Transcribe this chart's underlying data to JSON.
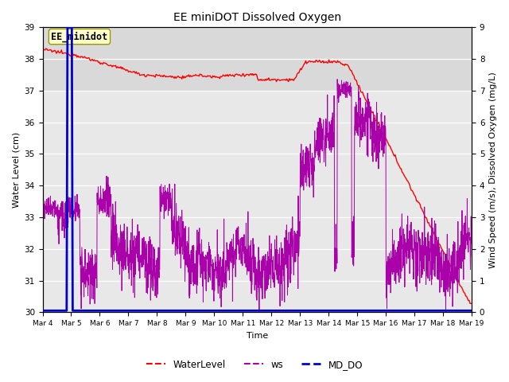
{
  "title": "EE miniDOT Dissolved Oxygen",
  "xlabel": "Time",
  "ylabel_left": "Water Level (cm)",
  "ylabel_right": "Wind Speed (m/s), Dissolved Oxygen (mg/L)",
  "ylim_left": [
    30.0,
    39.0
  ],
  "ylim_right": [
    0.0,
    9.0
  ],
  "yticks_left": [
    30.0,
    31.0,
    32.0,
    33.0,
    34.0,
    35.0,
    36.0,
    37.0,
    38.0,
    39.0
  ],
  "yticks_right": [
    0.0,
    1.0,
    2.0,
    3.0,
    4.0,
    5.0,
    6.0,
    7.0,
    8.0,
    9.0
  ],
  "xtick_labels": [
    "Mar 4",
    "Mar 5",
    "Mar 6",
    "Mar 7",
    "Mar 8",
    "Mar 9",
    "Mar 10",
    "Mar 11",
    "Mar 12",
    "Mar 13",
    "Mar 14",
    "Mar 15",
    "Mar 16",
    "Mar 17",
    "Mar 18",
    "Mar 19"
  ],
  "annotation_text": "EE_minidot",
  "legend_labels": [
    "WaterLevel",
    "ws",
    "MD_DO"
  ],
  "legend_colors": [
    "#ff0000",
    "#aa00aa",
    "#0000cc"
  ],
  "line_colors": {
    "WaterLevel": "#ff0000",
    "ws": "#aa00aa",
    "MD_DO": "#0000cc"
  },
  "plot_bg": "#e8e8e8",
  "gray_band_light": "#d0d0d0"
}
